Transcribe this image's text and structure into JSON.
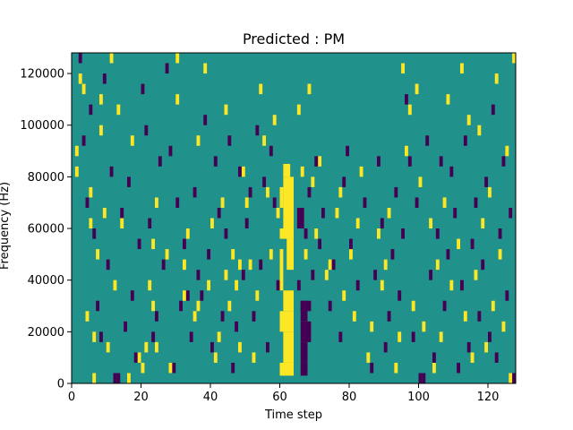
{
  "chart_data": {
    "type": "heatmap",
    "title": "Predicted : PM",
    "xlabel": "Time step",
    "ylabel": "Frequency (Hz)",
    "xlim": [
      0,
      128
    ],
    "ylim": [
      0,
      128000
    ],
    "xticks": [
      0,
      20,
      40,
      60,
      80,
      100,
      120
    ],
    "yticks": [
      0,
      20000,
      40000,
      60000,
      80000,
      100000,
      120000
    ],
    "xtick_labels": [
      "0",
      "20",
      "40",
      "60",
      "80",
      "100",
      "120"
    ],
    "ytick_labels": [
      "0",
      "20000",
      "40000",
      "60000",
      "80000",
      "100000",
      "120000"
    ],
    "n_time_steps": 128,
    "n_freq_bins": 32,
    "freq_bin_hz": 4000,
    "colormap": "viridis",
    "colors": {
      "background": "#21918c",
      "high": "#fde725",
      "low": "#440154"
    },
    "high_bands": [
      {
        "x": [
          61,
          63
        ],
        "y": [
          80000,
          85000
        ]
      },
      {
        "x": [
          61,
          64
        ],
        "y": [
          56000,
          80000
        ]
      },
      {
        "x": [
          60,
          61
        ],
        "y": [
          68000,
          76000
        ]
      },
      {
        "x": [
          60,
          62
        ],
        "y": [
          56000,
          60000
        ]
      },
      {
        "x": [
          62,
          64
        ],
        "y": [
          44000,
          56000
        ]
      },
      {
        "x": [
          60,
          61
        ],
        "y": [
          36000,
          52000
        ]
      },
      {
        "x": [
          61,
          64
        ],
        "y": [
          28000,
          36000
        ]
      },
      {
        "x": [
          60,
          64
        ],
        "y": [
          20000,
          28000
        ]
      },
      {
        "x": [
          61,
          64
        ],
        "y": [
          8000,
          20000
        ]
      },
      {
        "x": [
          60,
          64
        ],
        "y": [
          3000,
          8000
        ]
      }
    ],
    "low_bands": [
      {
        "x": [
          66,
          68
        ],
        "y": [
          8000,
          16000
        ]
      },
      {
        "x": [
          66,
          69
        ],
        "y": [
          16000,
          24000
        ]
      },
      {
        "x": [
          66,
          68
        ],
        "y": [
          24000,
          32000
        ]
      },
      {
        "x": [
          66,
          69
        ],
        "y": [
          28000,
          32000
        ]
      },
      {
        "x": [
          65,
          67
        ],
        "y": [
          60000,
          68000
        ]
      },
      {
        "x": [
          66,
          68
        ],
        "y": [
          3000,
          8000
        ]
      }
    ],
    "high_cells": [
      [
        1,
        80
      ],
      [
        1,
        88
      ],
      [
        2,
        116
      ],
      [
        3,
        112
      ],
      [
        4,
        24
      ],
      [
        5,
        72
      ],
      [
        5,
        60
      ],
      [
        6,
        0
      ],
      [
        6,
        16
      ],
      [
        7,
        48
      ],
      [
        8,
        108
      ],
      [
        8,
        96
      ],
      [
        9,
        64
      ],
      [
        10,
        12
      ],
      [
        11,
        124
      ],
      [
        12,
        36
      ],
      [
        13,
        104
      ],
      [
        14,
        60
      ],
      [
        16,
        0
      ],
      [
        17,
        92
      ],
      [
        19,
        8
      ],
      [
        20,
        4
      ],
      [
        21,
        12
      ],
      [
        22,
        36
      ],
      [
        23,
        28
      ],
      [
        23,
        52
      ],
      [
        24,
        68
      ],
      [
        24,
        12
      ],
      [
        27,
        48
      ],
      [
        28,
        128
      ],
      [
        28,
        4
      ],
      [
        30,
        124
      ],
      [
        30,
        108
      ],
      [
        32,
        44
      ],
      [
        32,
        32
      ],
      [
        33,
        56
      ],
      [
        35,
        24
      ],
      [
        36,
        92
      ],
      [
        36,
        28
      ],
      [
        38,
        120
      ],
      [
        39,
        36
      ],
      [
        40,
        60
      ],
      [
        41,
        8
      ],
      [
        42,
        16
      ],
      [
        43,
        68
      ],
      [
        44,
        40
      ],
      [
        44,
        104
      ],
      [
        45,
        28
      ],
      [
        46,
        48
      ],
      [
        47,
        36
      ],
      [
        48,
        44
      ],
      [
        48,
        12
      ],
      [
        49,
        80
      ],
      [
        50,
        68
      ],
      [
        51,
        44
      ],
      [
        52,
        8
      ],
      [
        53,
        32
      ],
      [
        54,
        112
      ],
      [
        55,
        92
      ],
      [
        56,
        72
      ],
      [
        57,
        48
      ],
      [
        58,
        100
      ],
      [
        59,
        64
      ],
      [
        65,
        104
      ],
      [
        66,
        80
      ],
      [
        67,
        48
      ],
      [
        68,
        112
      ],
      [
        69,
        76
      ],
      [
        70,
        56
      ],
      [
        71,
        84
      ],
      [
        73,
        40
      ],
      [
        74,
        44
      ],
      [
        76,
        64
      ],
      [
        77,
        72
      ],
      [
        78,
        32
      ],
      [
        80,
        48
      ],
      [
        81,
        24
      ],
      [
        82,
        60
      ],
      [
        83,
        80
      ],
      [
        85,
        8
      ],
      [
        86,
        20
      ],
      [
        88,
        56
      ],
      [
        89,
        36
      ],
      [
        90,
        44
      ],
      [
        91,
        64
      ],
      [
        93,
        4
      ],
      [
        94,
        16
      ],
      [
        95,
        120
      ],
      [
        96,
        88
      ],
      [
        97,
        104
      ],
      [
        98,
        28
      ],
      [
        99,
        112
      ],
      [
        100,
        76
      ],
      [
        101,
        20
      ],
      [
        103,
        60
      ],
      [
        104,
        4
      ],
      [
        105,
        44
      ],
      [
        106,
        16
      ],
      [
        107,
        68
      ],
      [
        108,
        108
      ],
      [
        109,
        36
      ],
      [
        111,
        52
      ],
      [
        112,
        120
      ],
      [
        113,
        24
      ],
      [
        114,
        100
      ],
      [
        115,
        8
      ],
      [
        116,
        40
      ],
      [
        117,
        96
      ],
      [
        118,
        60
      ],
      [
        119,
        12
      ],
      [
        120,
        72
      ],
      [
        121,
        28
      ],
      [
        122,
        116
      ],
      [
        123,
        48
      ],
      [
        124,
        20
      ],
      [
        125,
        88
      ],
      [
        126,
        0
      ],
      [
        127,
        124
      ]
    ],
    "low_cells": [
      [
        2,
        124
      ],
      [
        3,
        92
      ],
      [
        4,
        68
      ],
      [
        5,
        104
      ],
      [
        6,
        56
      ],
      [
        7,
        28
      ],
      [
        8,
        16
      ],
      [
        9,
        116
      ],
      [
        10,
        44
      ],
      [
        11,
        80
      ],
      [
        12,
        0
      ],
      [
        13,
        0
      ],
      [
        14,
        64
      ],
      [
        15,
        20
      ],
      [
        16,
        76
      ],
      [
        17,
        32
      ],
      [
        18,
        8
      ],
      [
        19,
        52
      ],
      [
        20,
        112
      ],
      [
        21,
        96
      ],
      [
        22,
        60
      ],
      [
        23,
        16
      ],
      [
        24,
        24
      ],
      [
        25,
        84
      ],
      [
        26,
        44
      ],
      [
        27,
        120
      ],
      [
        28,
        88
      ],
      [
        29,
        4
      ],
      [
        30,
        68
      ],
      [
        31,
        28
      ],
      [
        32,
        52
      ],
      [
        33,
        32
      ],
      [
        34,
        16
      ],
      [
        35,
        72
      ],
      [
        36,
        40
      ],
      [
        37,
        32
      ],
      [
        38,
        100
      ],
      [
        39,
        48
      ],
      [
        40,
        12
      ],
      [
        41,
        84
      ],
      [
        42,
        64
      ],
      [
        43,
        24
      ],
      [
        44,
        56
      ],
      [
        45,
        92
      ],
      [
        46,
        4
      ],
      [
        47,
        20
      ],
      [
        48,
        80
      ],
      [
        49,
        40
      ],
      [
        50,
        60
      ],
      [
        51,
        72
      ],
      [
        52,
        24
      ],
      [
        53,
        96
      ],
      [
        54,
        44
      ],
      [
        55,
        76
      ],
      [
        56,
        12
      ],
      [
        57,
        88
      ],
      [
        58,
        68
      ],
      [
        59,
        36
      ],
      [
        65,
        36
      ],
      [
        67,
        56
      ],
      [
        68,
        72
      ],
      [
        69,
        40
      ],
      [
        70,
        84
      ],
      [
        71,
        52
      ],
      [
        72,
        64
      ],
      [
        74,
        28
      ],
      [
        75,
        44
      ],
      [
        77,
        16
      ],
      [
        78,
        76
      ],
      [
        79,
        88
      ],
      [
        80,
        52
      ],
      [
        82,
        36
      ],
      [
        84,
        68
      ],
      [
        86,
        4
      ],
      [
        87,
        40
      ],
      [
        88,
        84
      ],
      [
        89,
        60
      ],
      [
        90,
        12
      ],
      [
        91,
        24
      ],
      [
        92,
        48
      ],
      [
        93,
        72
      ],
      [
        94,
        32
      ],
      [
        95,
        56
      ],
      [
        96,
        108
      ],
      [
        97,
        84
      ],
      [
        98,
        16
      ],
      [
        99,
        68
      ],
      [
        100,
        0
      ],
      [
        101,
        0
      ],
      [
        102,
        92
      ],
      [
        103,
        40
      ],
      [
        104,
        8
      ],
      [
        105,
        56
      ],
      [
        106,
        84
      ],
      [
        107,
        28
      ],
      [
        108,
        48
      ],
      [
        109,
        80
      ],
      [
        110,
        64
      ],
      [
        111,
        4
      ],
      [
        112,
        36
      ],
      [
        113,
        92
      ],
      [
        114,
        12
      ],
      [
        115,
        52
      ],
      [
        116,
        68
      ],
      [
        117,
        24
      ],
      [
        118,
        44
      ],
      [
        119,
        76
      ],
      [
        120,
        16
      ],
      [
        121,
        104
      ],
      [
        122,
        8
      ],
      [
        123,
        56
      ],
      [
        124,
        84
      ],
      [
        125,
        32
      ],
      [
        126,
        64
      ],
      [
        127,
        0
      ]
    ]
  }
}
